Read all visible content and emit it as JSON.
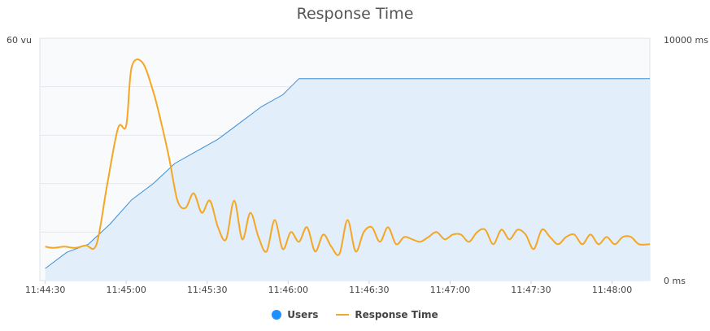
{
  "chart_data": {
    "type": "line",
    "title": "Response Time",
    "y_left_top_label": "60 vu",
    "y_right_top_label": "10000 ms",
    "y_right_bottom_label": "0 ms",
    "y_left_range": [
      0,
      60
    ],
    "y_right_range": [
      0,
      10000
    ],
    "x_range_seconds_labels": [
      "11:44:30",
      "11:45:00",
      "11:45:30",
      "11:46:00",
      "11:46:30",
      "11:47:00",
      "11:47:30",
      "11:48:00"
    ],
    "legend_position": "bottom-center",
    "colors": {
      "users": "#1e90ff",
      "users_line": "#3a8fd6",
      "users_fill": "#e2eef9",
      "response": "#f5a623",
      "plot_bg": "#f9fafc"
    },
    "series": [
      {
        "name": "Users",
        "axis": "left",
        "x": [
          "11:44:30",
          "11:44:38",
          "11:44:46",
          "11:44:54",
          "11:45:02",
          "11:45:10",
          "11:45:18",
          "11:45:26",
          "11:45:34",
          "11:45:42",
          "11:45:50",
          "11:45:58",
          "11:46:04",
          "11:46:30",
          "11:47:00",
          "11:47:30",
          "11:48:00",
          "11:48:14"
        ],
        "values": [
          3,
          7,
          9,
          14,
          20,
          24,
          29,
          32,
          35,
          39,
          43,
          46,
          50,
          50,
          50,
          50,
          50,
          50
        ]
      },
      {
        "name": "Response Time",
        "axis": "right",
        "x": [
          "11:44:30",
          "11:44:33",
          "11:44:37",
          "11:44:41",
          "11:44:45",
          "11:44:49",
          "11:44:53",
          "11:44:57",
          "11:45:00",
          "11:45:02",
          "11:45:06",
          "11:45:10",
          "11:45:13",
          "11:45:16",
          "11:45:19",
          "11:45:22",
          "11:45:25",
          "11:45:28",
          "11:45:31",
          "11:45:34",
          "11:45:37",
          "11:45:40",
          "11:45:43",
          "11:45:46",
          "11:45:49",
          "11:45:52",
          "11:45:55",
          "11:45:58",
          "11:46:01",
          "11:46:04",
          "11:46:07",
          "11:46:10",
          "11:46:13",
          "11:46:16",
          "11:46:19",
          "11:46:22",
          "11:46:25",
          "11:46:28",
          "11:46:31",
          "11:46:34",
          "11:46:37",
          "11:46:40",
          "11:46:43",
          "11:46:46",
          "11:46:49",
          "11:46:52",
          "11:46:55",
          "11:46:58",
          "11:47:01",
          "11:47:04",
          "11:47:07",
          "11:47:10",
          "11:47:13",
          "11:47:16",
          "11:47:19",
          "11:47:22",
          "11:47:25",
          "11:47:28",
          "11:47:31",
          "11:47:34",
          "11:47:37",
          "11:47:40",
          "11:47:43",
          "11:47:46",
          "11:47:49",
          "11:47:52",
          "11:47:55",
          "11:47:58",
          "11:48:01",
          "11:48:04",
          "11:48:07",
          "11:48:10",
          "11:48:14"
        ],
        "values": [
          1400,
          1350,
          1400,
          1350,
          1450,
          1500,
          4000,
          6300,
          6400,
          8800,
          9000,
          7800,
          6500,
          5000,
          3300,
          3000,
          3600,
          2800,
          3300,
          2200,
          1700,
          3300,
          1700,
          2800,
          1800,
          1200,
          2500,
          1300,
          2000,
          1600,
          2200,
          1200,
          1900,
          1400,
          1100,
          2500,
          1200,
          2000,
          2200,
          1600,
          2200,
          1500,
          1800,
          1700,
          1600,
          1800,
          2000,
          1700,
          1900,
          1900,
          1600,
          2000,
          2100,
          1500,
          2100,
          1700,
          2100,
          1900,
          1300,
          2100,
          1800,
          1500,
          1800,
          1900,
          1500,
          1900,
          1500,
          1800,
          1500,
          1800,
          1800,
          1500,
          1500
        ]
      }
    ]
  }
}
